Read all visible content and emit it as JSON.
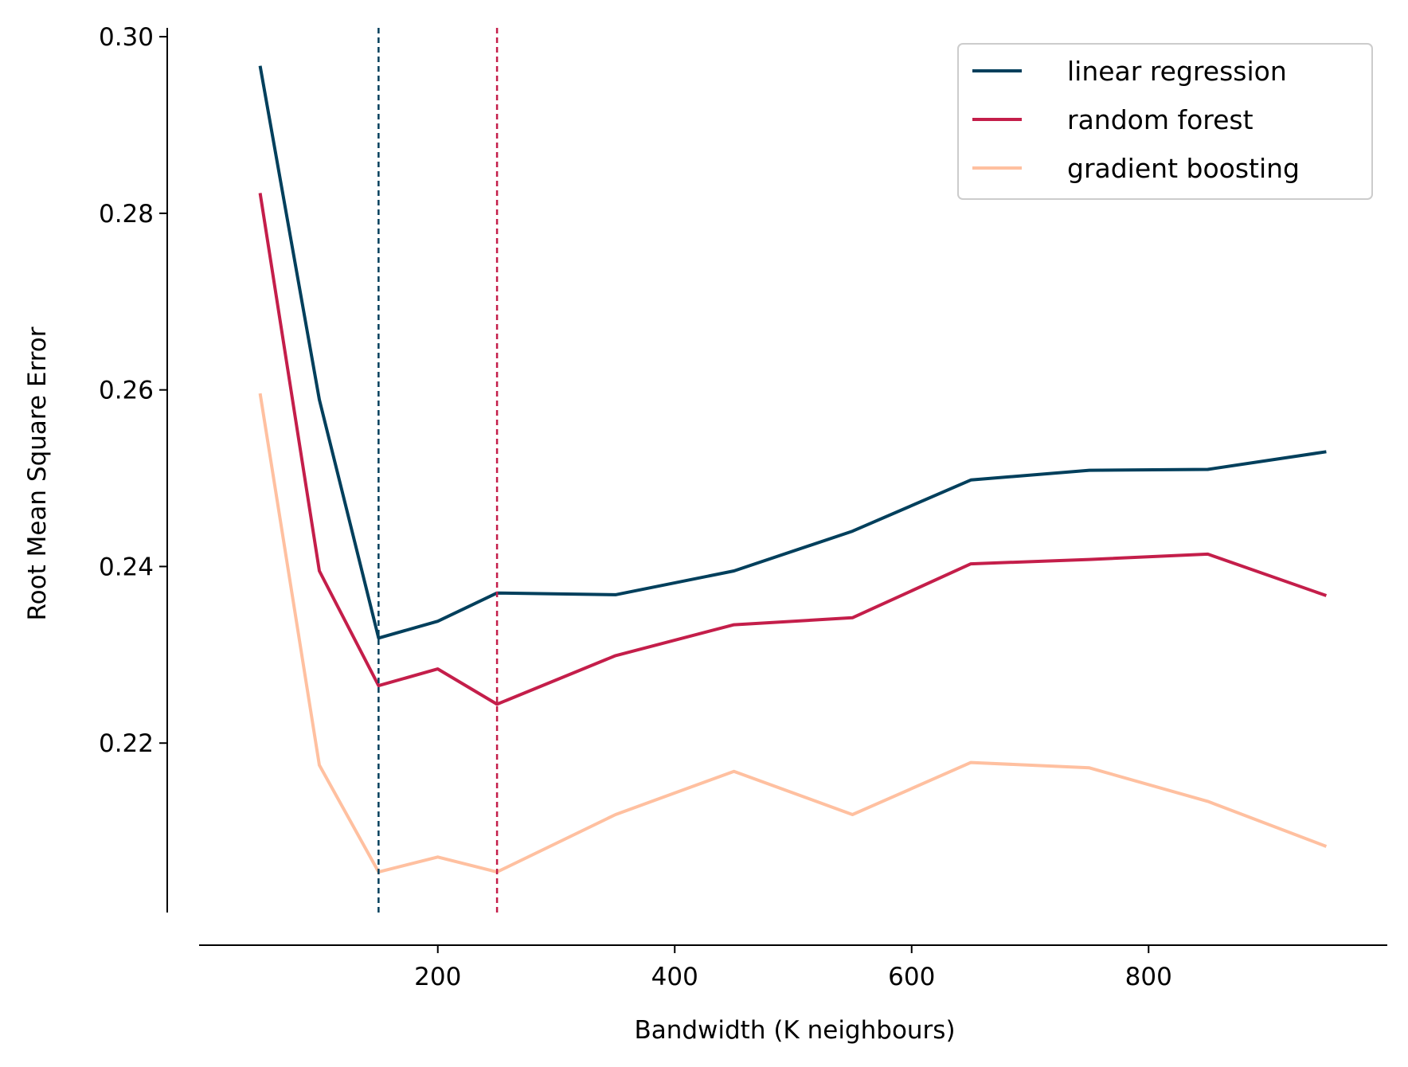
{
  "chart_data": {
    "type": "line",
    "title": "",
    "xlabel": "Bandwidth (K neighbours)",
    "ylabel": "Root Mean Square Error",
    "xlim": [
      -1.5,
      1001.5
    ],
    "ylim": [
      0.2,
      0.301
    ],
    "xticks": [
      200,
      400,
      600,
      800
    ],
    "yticks": [
      0.22,
      0.24,
      0.26,
      0.28,
      0.3
    ],
    "xtick_labels": [
      "200",
      "400",
      "600",
      "800"
    ],
    "ytick_labels": [
      "0.22",
      "0.24",
      "0.26",
      "0.28",
      "0.30"
    ],
    "grid": false,
    "legend_position": "top-right",
    "x": [
      50,
      100,
      150,
      200,
      250,
      350,
      450,
      550,
      650,
      750,
      850,
      950
    ],
    "series": [
      {
        "name": "linear regression",
        "color": "#003f5c",
        "values": [
          0.2967,
          0.2589,
          0.2319,
          0.2338,
          0.237,
          0.2368,
          0.2395,
          0.244,
          0.2498,
          0.2509,
          0.251,
          0.253
        ]
      },
      {
        "name": "random forest",
        "color": "#c41e4a",
        "values": [
          0.2823,
          0.2395,
          0.2265,
          0.2284,
          0.2244,
          0.2299,
          0.2334,
          0.2342,
          0.2403,
          0.2408,
          0.2414,
          0.2367
        ]
      },
      {
        "name": "gradient boosting",
        "color": "#ffc0a0",
        "values": [
          0.2596,
          0.2175,
          0.2054,
          0.2071,
          0.2054,
          0.2119,
          0.2168,
          0.2119,
          0.2178,
          0.2172,
          0.2134,
          0.2083
        ]
      }
    ],
    "reference_lines": [
      {
        "x": 150,
        "color": "#003f5c",
        "style": "dashed"
      },
      {
        "x": 250,
        "color": "#c41e4a",
        "style": "dashed"
      }
    ]
  }
}
